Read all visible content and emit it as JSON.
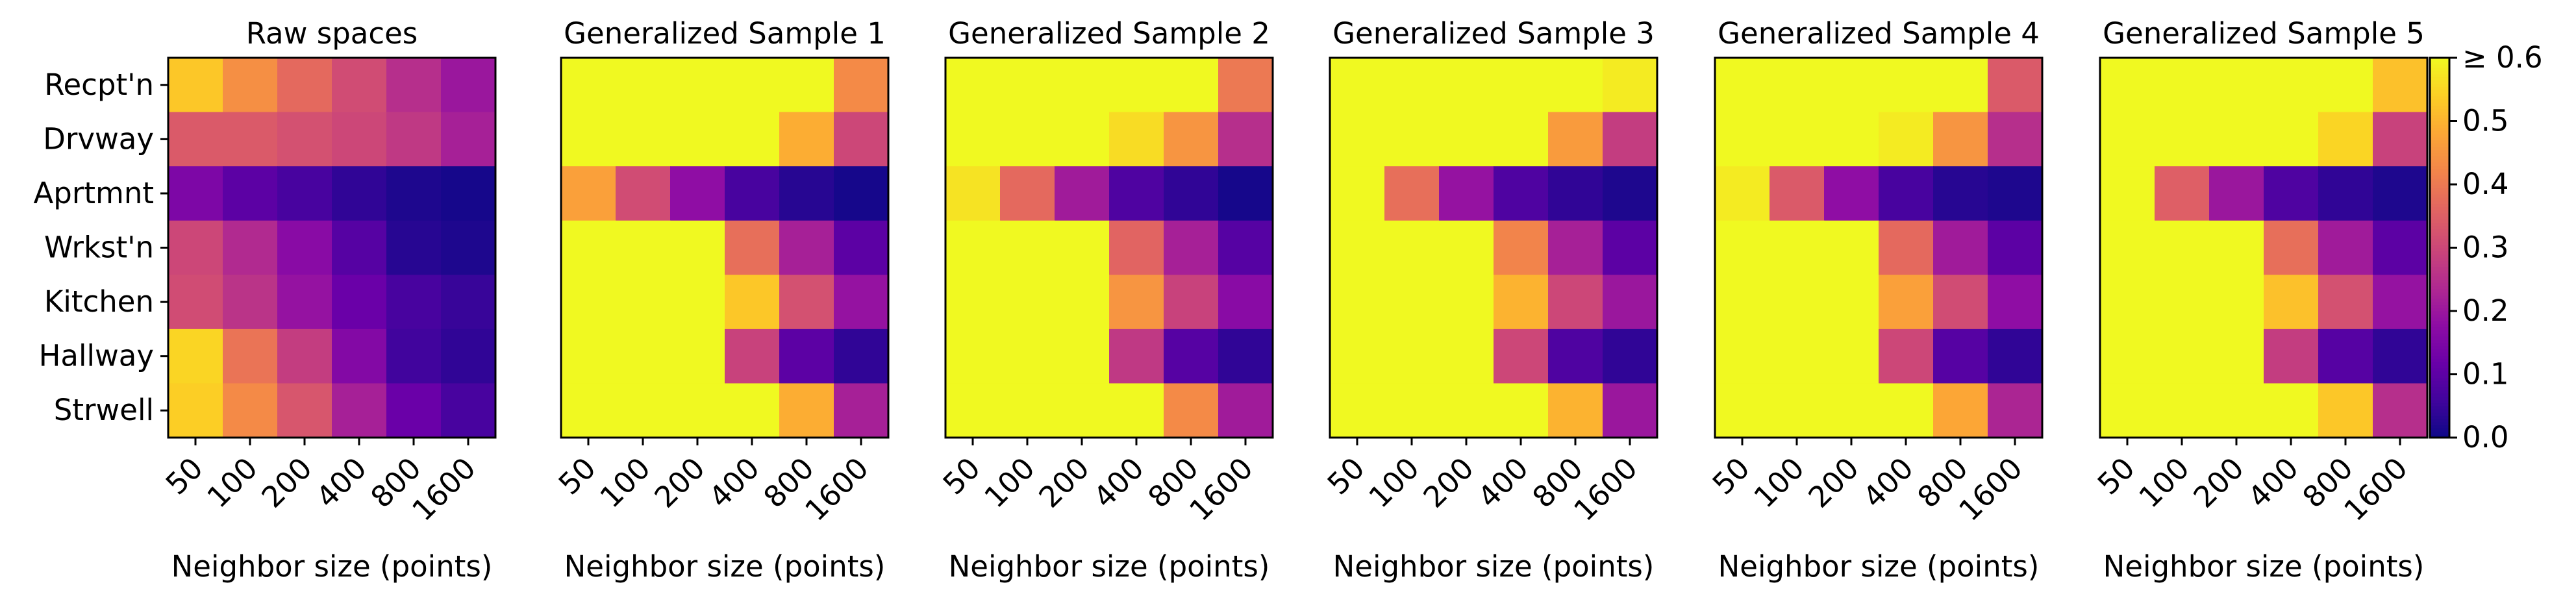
{
  "chart_data": {
    "type": "heatmap",
    "colormap": "plasma",
    "color_range": [
      0,
      0.6
    ],
    "colorbar_ticks": [
      "0.0",
      "0.1",
      "0.2",
      "0.3",
      "0.4",
      "0.5",
      "≥ 0.6"
    ],
    "y_categories": [
      "Recpt'n",
      "Drvway",
      "Aprtmnt",
      "Wrkst'n",
      "Kitchen",
      "Hallway",
      "Strwell"
    ],
    "x_categories": [
      "50",
      "100",
      "200",
      "400",
      "800",
      "1600"
    ],
    "xlabel": "Neighbor size (points)",
    "panels": [
      {
        "title": "Raw spaces",
        "values": [
          [
            0.53,
            0.44,
            0.37,
            0.31,
            0.25,
            0.2
          ],
          [
            0.34,
            0.34,
            0.32,
            0.3,
            0.27,
            0.22
          ],
          [
            0.15,
            0.1,
            0.07,
            0.04,
            0.02,
            0.01
          ],
          [
            0.3,
            0.24,
            0.17,
            0.09,
            0.03,
            0.02
          ],
          [
            0.31,
            0.26,
            0.19,
            0.12,
            0.07,
            0.05
          ],
          [
            0.55,
            0.39,
            0.28,
            0.16,
            0.06,
            0.04
          ],
          [
            0.54,
            0.43,
            0.33,
            0.22,
            0.12,
            0.07
          ]
        ]
      },
      {
        "title": "Generalized Sample 1",
        "values": [
          [
            0.6,
            0.6,
            0.6,
            0.6,
            0.6,
            0.43
          ],
          [
            0.6,
            0.6,
            0.6,
            0.6,
            0.49,
            0.3
          ],
          [
            0.47,
            0.31,
            0.18,
            0.07,
            0.03,
            0.01
          ],
          [
            0.6,
            0.6,
            0.6,
            0.38,
            0.22,
            0.1
          ],
          [
            0.6,
            0.6,
            0.6,
            0.53,
            0.32,
            0.19
          ],
          [
            0.6,
            0.6,
            0.6,
            0.29,
            0.1,
            0.04
          ],
          [
            0.6,
            0.6,
            0.6,
            0.6,
            0.49,
            0.22
          ]
        ]
      },
      {
        "title": "Generalized Sample 2",
        "values": [
          [
            0.6,
            0.6,
            0.6,
            0.6,
            0.6,
            0.4
          ],
          [
            0.6,
            0.6,
            0.6,
            0.56,
            0.45,
            0.25
          ],
          [
            0.57,
            0.37,
            0.21,
            0.08,
            0.04,
            0.01
          ],
          [
            0.6,
            0.6,
            0.6,
            0.36,
            0.22,
            0.09
          ],
          [
            0.6,
            0.6,
            0.6,
            0.45,
            0.29,
            0.17
          ],
          [
            0.6,
            0.6,
            0.6,
            0.27,
            0.09,
            0.04
          ],
          [
            0.6,
            0.6,
            0.6,
            0.6,
            0.43,
            0.21
          ]
        ]
      },
      {
        "title": "Generalized Sample 3",
        "values": [
          [
            0.6,
            0.6,
            0.6,
            0.6,
            0.6,
            0.58
          ],
          [
            0.6,
            0.6,
            0.6,
            0.6,
            0.46,
            0.28
          ],
          [
            0.6,
            0.38,
            0.19,
            0.08,
            0.04,
            0.02
          ],
          [
            0.6,
            0.6,
            0.6,
            0.42,
            0.22,
            0.1
          ],
          [
            0.6,
            0.6,
            0.6,
            0.5,
            0.3,
            0.2
          ],
          [
            0.6,
            0.6,
            0.6,
            0.3,
            0.08,
            0.04
          ],
          [
            0.6,
            0.6,
            0.6,
            0.6,
            0.5,
            0.2
          ]
        ]
      },
      {
        "title": "Generalized Sample 4",
        "values": [
          [
            0.6,
            0.6,
            0.6,
            0.6,
            0.6,
            0.34
          ],
          [
            0.6,
            0.6,
            0.6,
            0.58,
            0.45,
            0.25
          ],
          [
            0.58,
            0.34,
            0.18,
            0.07,
            0.03,
            0.02
          ],
          [
            0.6,
            0.6,
            0.6,
            0.37,
            0.21,
            0.1
          ],
          [
            0.6,
            0.6,
            0.6,
            0.47,
            0.31,
            0.18
          ],
          [
            0.6,
            0.6,
            0.6,
            0.3,
            0.09,
            0.04
          ],
          [
            0.6,
            0.6,
            0.6,
            0.6,
            0.48,
            0.23
          ]
        ]
      },
      {
        "title": "Generalized Sample 5",
        "values": [
          [
            0.6,
            0.6,
            0.6,
            0.6,
            0.6,
            0.52
          ],
          [
            0.6,
            0.6,
            0.6,
            0.6,
            0.55,
            0.29
          ],
          [
            0.6,
            0.35,
            0.2,
            0.08,
            0.04,
            0.02
          ],
          [
            0.6,
            0.6,
            0.6,
            0.38,
            0.21,
            0.1
          ],
          [
            0.6,
            0.6,
            0.6,
            0.52,
            0.32,
            0.19
          ],
          [
            0.6,
            0.6,
            0.6,
            0.28,
            0.09,
            0.04
          ],
          [
            0.6,
            0.6,
            0.6,
            0.6,
            0.53,
            0.25
          ]
        ]
      }
    ]
  }
}
